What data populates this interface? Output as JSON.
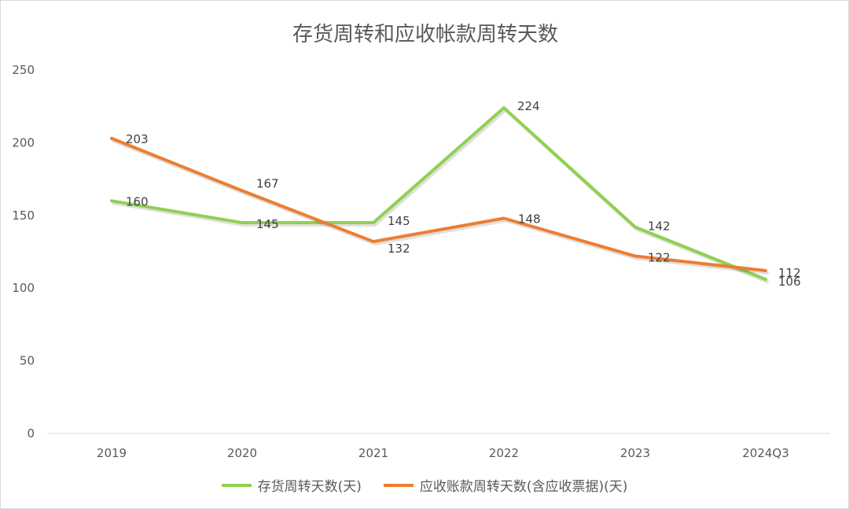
{
  "chart_data": {
    "type": "line",
    "title": "存货周转和应收帐款周转天数",
    "categories": [
      "2019",
      "2020",
      "2021",
      "2022",
      "2023",
      "2024Q3"
    ],
    "series": [
      {
        "name": "存货周转天数(天)",
        "values": [
          160,
          145,
          145,
          224,
          142,
          106
        ],
        "color": "#8FD14F"
      },
      {
        "name": "应收账款周转天数(含应收票据)(天)",
        "values": [
          203,
          167,
          132,
          148,
          122,
          112
        ],
        "color": "#ED7D31"
      }
    ],
    "ylim": [
      0,
      250
    ],
    "yticks": [
      "0",
      "50",
      "100",
      "150",
      "200",
      "250"
    ],
    "grid": false,
    "legend": "bottom"
  }
}
